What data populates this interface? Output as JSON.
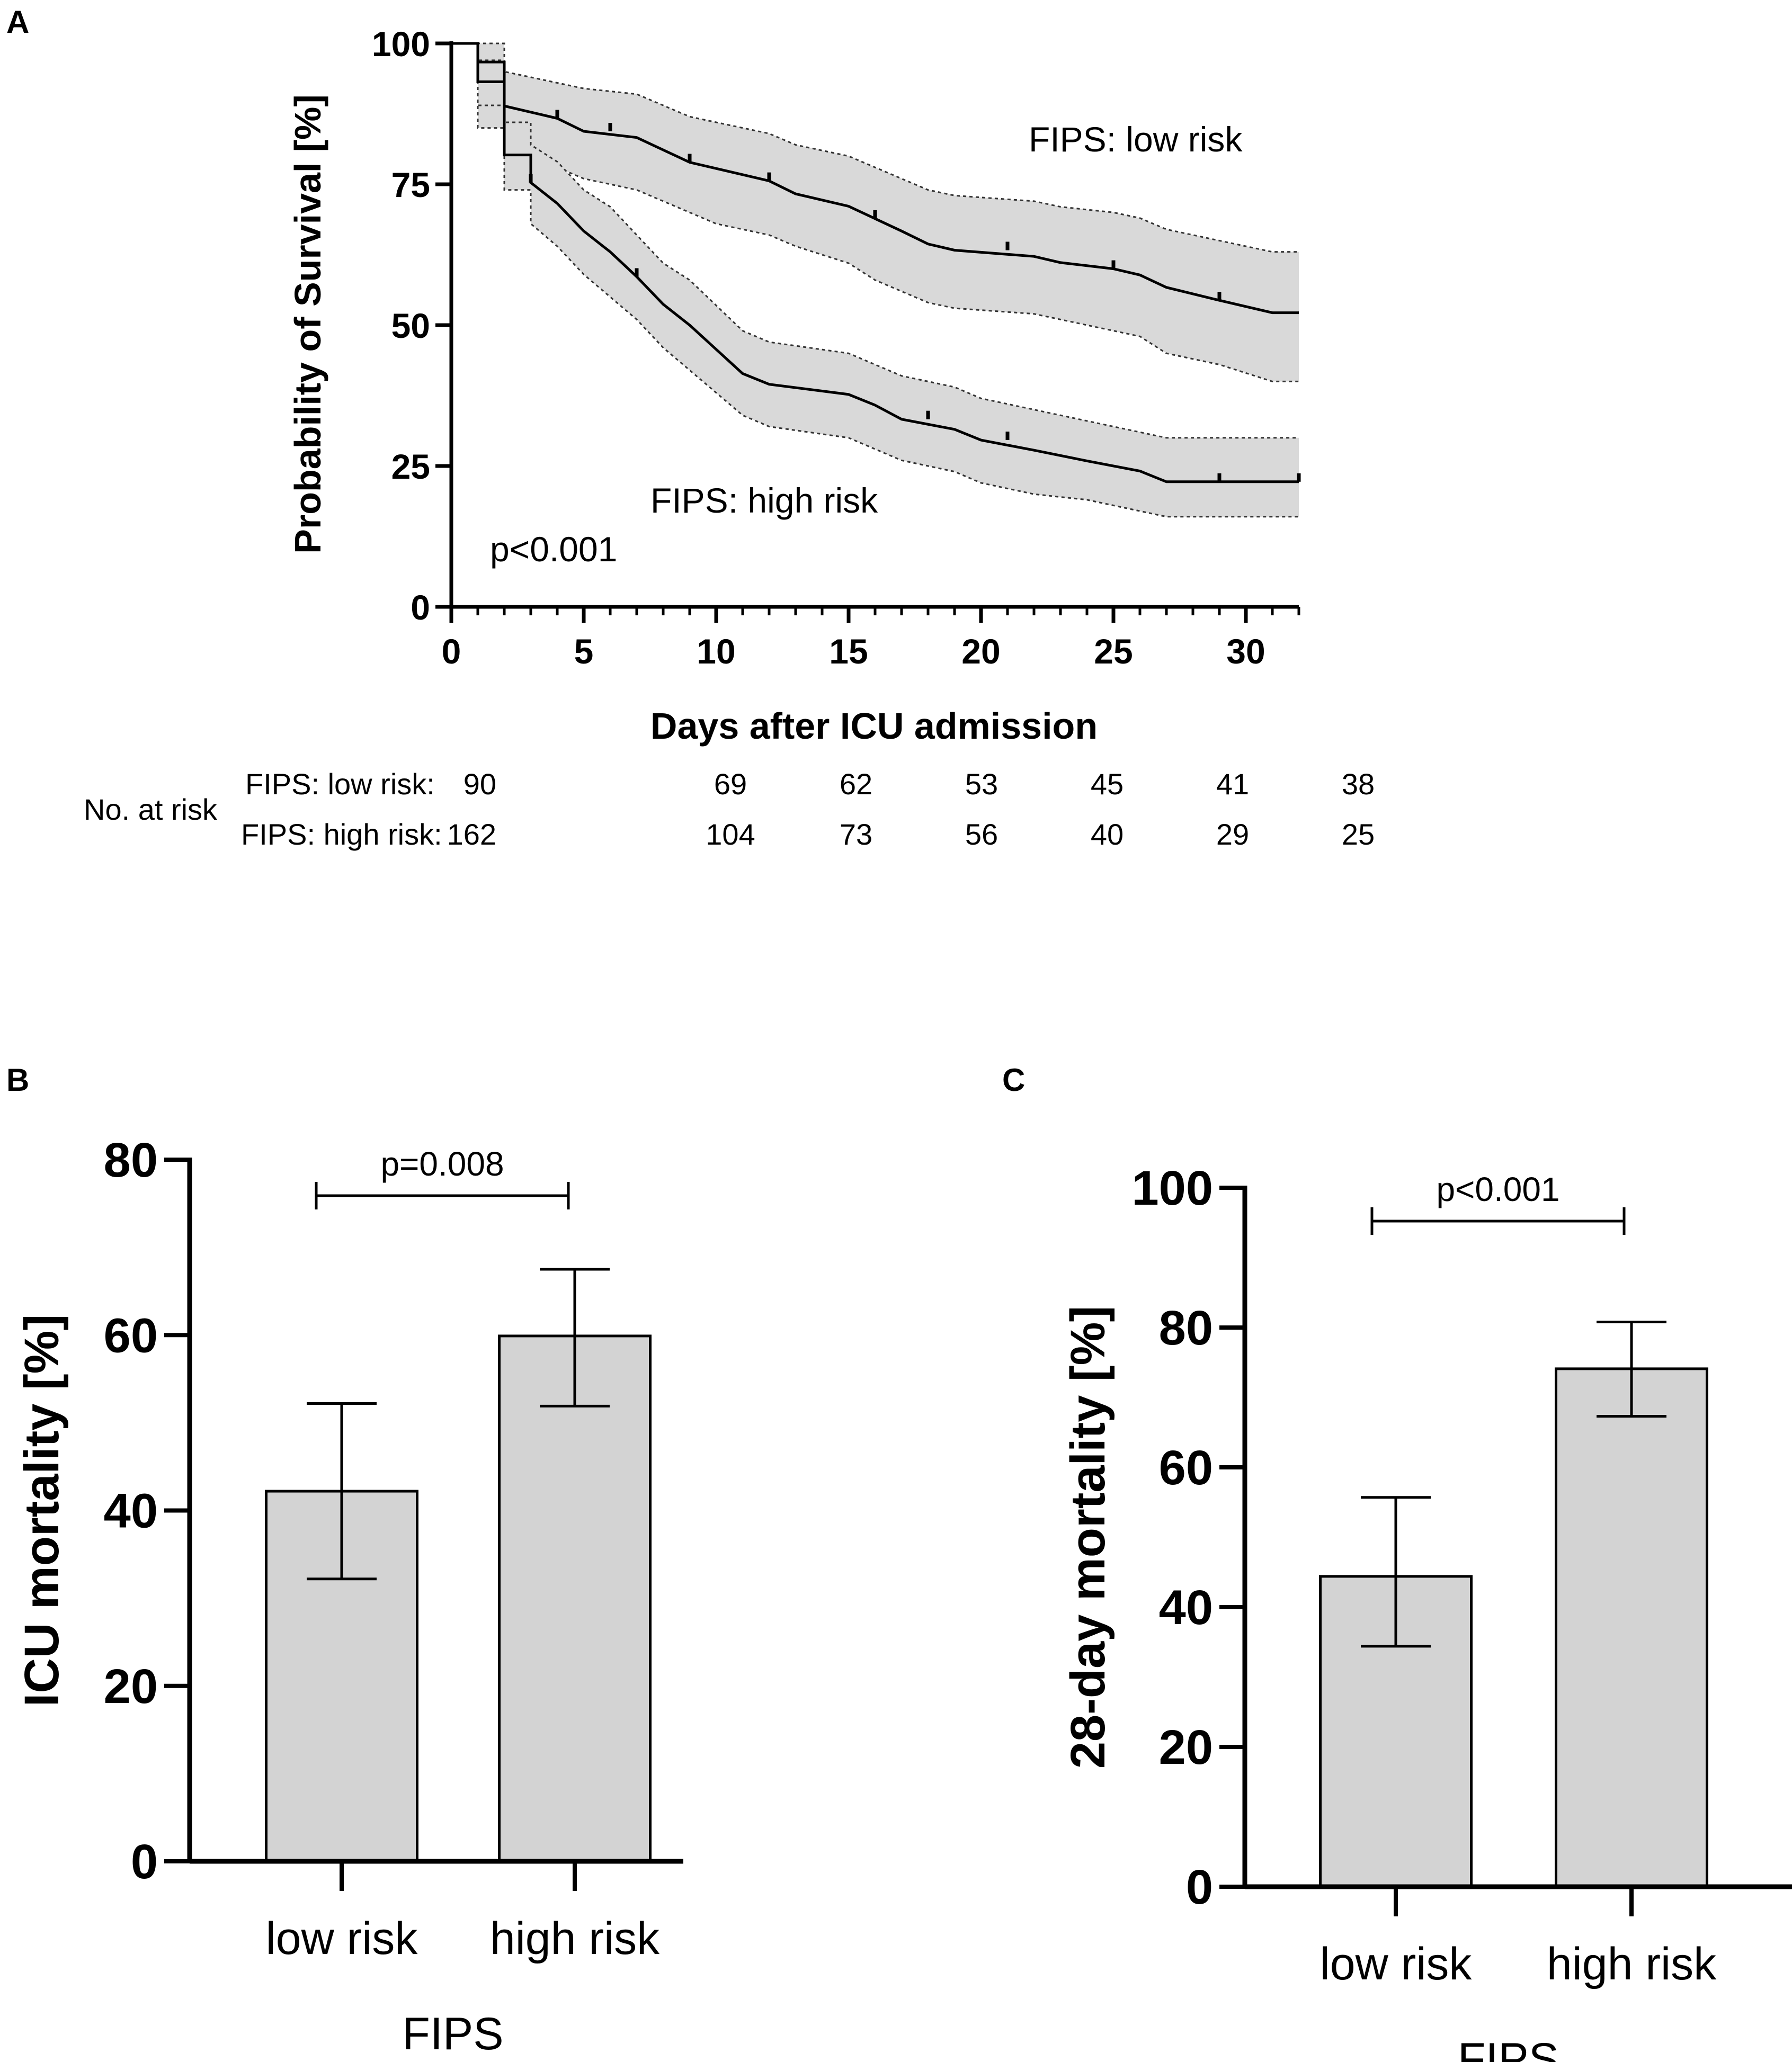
{
  "chart_data": [
    {
      "panel": "A",
      "type": "line",
      "subtype": "kaplan-meier",
      "xlabel": "Days after ICU admission",
      "ylabel": "Probability of Survival [%]",
      "xlim": [
        0,
        32
      ],
      "ylim": [
        0,
        100
      ],
      "xticks": [
        0,
        5,
        10,
        15,
        20,
        25,
        30
      ],
      "yticks": [
        0,
        25,
        50,
        75,
        100
      ],
      "annotation": "p<0.001",
      "series": [
        {
          "name": "FIPS: low risk",
          "steps": [
            [
              0,
              100
            ],
            [
              1,
              100
            ],
            [
              1,
              96.7
            ],
            [
              2,
              96.7
            ],
            [
              2,
              88.9
            ],
            [
              4,
              86.7
            ],
            [
              5,
              84.4
            ],
            [
              7,
              83.3
            ],
            [
              8,
              81.1
            ],
            [
              9,
              78.9
            ],
            [
              10,
              77.8
            ],
            [
              12,
              75.6
            ],
            [
              13,
              73.3
            ],
            [
              15,
              71.1
            ],
            [
              16,
              68.9
            ],
            [
              17,
              66.7
            ],
            [
              18,
              64.4
            ],
            [
              19,
              63.3
            ],
            [
              22,
              62.2
            ],
            [
              23,
              61.1
            ],
            [
              25,
              60.0
            ],
            [
              26,
              58.9
            ],
            [
              27,
              56.7
            ],
            [
              29,
              54.4
            ],
            [
              31,
              52.2
            ],
            [
              32,
              52.2
            ]
          ],
          "ci_lower": [
            [
              0,
              100
            ],
            [
              1,
              100
            ],
            [
              1,
              85
            ],
            [
              2,
              85
            ],
            [
              2,
              81
            ],
            [
              4,
              78
            ],
            [
              5,
              76
            ],
            [
              7,
              74
            ],
            [
              8,
              72
            ],
            [
              9,
              70
            ],
            [
              10,
              68
            ],
            [
              12,
              66
            ],
            [
              13,
              64
            ],
            [
              15,
              61
            ],
            [
              16,
              58
            ],
            [
              17,
              56
            ],
            [
              18,
              54
            ],
            [
              19,
              53
            ],
            [
              22,
              52
            ],
            [
              23,
              51
            ],
            [
              25,
              49
            ],
            [
              26,
              48
            ],
            [
              27,
              45
            ],
            [
              29,
              43
            ],
            [
              31,
              40
            ],
            [
              32,
              40
            ]
          ],
          "ci_upper": [
            [
              0,
              100
            ],
            [
              1,
              100
            ],
            [
              1,
              100
            ],
            [
              2,
              100
            ],
            [
              2,
              95
            ],
            [
              4,
              93
            ],
            [
              5,
              92
            ],
            [
              7,
              91
            ],
            [
              8,
              89
            ],
            [
              9,
              87
            ],
            [
              10,
              86
            ],
            [
              12,
              84
            ],
            [
              13,
              82
            ],
            [
              15,
              80
            ],
            [
              16,
              78
            ],
            [
              17,
              76
            ],
            [
              18,
              74
            ],
            [
              19,
              73
            ],
            [
              22,
              72
            ],
            [
              23,
              71
            ],
            [
              25,
              70
            ],
            [
              26,
              69
            ],
            [
              27,
              67
            ],
            [
              29,
              65
            ],
            [
              31,
              63
            ],
            [
              32,
              63
            ]
          ],
          "censored": [
            4,
            6,
            9,
            12,
            16,
            21,
            25,
            29
          ]
        },
        {
          "name": "FIPS: high risk",
          "steps": [
            [
              0,
              100
            ],
            [
              1,
              100
            ],
            [
              1,
              93.2
            ],
            [
              2,
              93.2
            ],
            [
              2,
              80.2
            ],
            [
              3,
              80.2
            ],
            [
              3,
              75.3
            ],
            [
              4,
              71.6
            ],
            [
              5,
              66.7
            ],
            [
              6,
              63.0
            ],
            [
              7,
              58.6
            ],
            [
              8,
              53.7
            ],
            [
              9,
              50.0
            ],
            [
              11,
              41.4
            ],
            [
              12,
              39.5
            ],
            [
              15,
              37.7
            ],
            [
              16,
              35.8
            ],
            [
              17,
              33.3
            ],
            [
              19,
              31.5
            ],
            [
              20,
              29.6
            ],
            [
              22,
              27.8
            ],
            [
              24,
              25.9
            ],
            [
              26,
              24.1
            ],
            [
              27,
              22.2
            ],
            [
              32,
              22.2
            ]
          ],
          "ci_lower": [
            [
              0,
              100
            ],
            [
              1,
              100
            ],
            [
              1,
              89
            ],
            [
              2,
              89
            ],
            [
              2,
              74
            ],
            [
              3,
              74
            ],
            [
              3,
              68
            ],
            [
              4,
              64
            ],
            [
              5,
              59
            ],
            [
              6,
              55
            ],
            [
              7,
              51
            ],
            [
              8,
              46
            ],
            [
              9,
              42
            ],
            [
              11,
              34
            ],
            [
              12,
              32
            ],
            [
              15,
              30
            ],
            [
              16,
              28
            ],
            [
              17,
              26
            ],
            [
              19,
              24
            ],
            [
              20,
              22
            ],
            [
              22,
              20
            ],
            [
              24,
              19
            ],
            [
              26,
              17
            ],
            [
              27,
              16
            ],
            [
              32,
              16
            ]
          ],
          "ci_upper": [
            [
              0,
              100
            ],
            [
              1,
              100
            ],
            [
              1,
              97
            ],
            [
              2,
              97
            ],
            [
              2,
              86
            ],
            [
              3,
              86
            ],
            [
              3,
              82
            ],
            [
              4,
              79
            ],
            [
              5,
              74
            ],
            [
              6,
              71
            ],
            [
              7,
              66
            ],
            [
              8,
              61
            ],
            [
              9,
              58
            ],
            [
              11,
              49
            ],
            [
              12,
              47
            ],
            [
              15,
              45
            ],
            [
              16,
              43
            ],
            [
              17,
              41
            ],
            [
              19,
              39
            ],
            [
              20,
              37
            ],
            [
              22,
              35
            ],
            [
              24,
              33
            ],
            [
              26,
              31
            ],
            [
              27,
              30
            ],
            [
              32,
              30
            ]
          ],
          "censored": [
            3,
            7,
            18,
            21,
            29,
            32
          ]
        }
      ],
      "risk_table": {
        "title": "No. at risk",
        "time_points": [
          0,
          5,
          10,
          15,
          20,
          25,
          30
        ],
        "rows": [
          {
            "label": "FIPS: low risk:",
            "values": [
              "90",
              "69",
              "62",
              "53",
              "45",
              "41",
              "38"
            ]
          },
          {
            "label": "FIPS: high risk:",
            "values": [
              "162",
              "104",
              "73",
              "56",
              "40",
              "29",
              "25"
            ]
          }
        ]
      }
    },
    {
      "panel": "B",
      "type": "bar",
      "categories": [
        "low risk",
        "high risk"
      ],
      "values": [
        42.2,
        59.9
      ],
      "error_low": [
        32.2,
        51.9
      ],
      "error_high": [
        52.2,
        67.5
      ],
      "xlabel": "FIPS",
      "ylabel": "ICU mortality [%]",
      "ylim": [
        0,
        80
      ],
      "yticks": [
        0,
        20,
        40,
        60,
        80
      ],
      "significance": "p=0.008"
    },
    {
      "panel": "C",
      "type": "bar",
      "categories": [
        "low risk",
        "high risk"
      ],
      "values": [
        44.4,
        74.1
      ],
      "error_low": [
        34.4,
        67.3
      ],
      "error_high": [
        55.7,
        80.8
      ],
      "xlabel": "FIPS",
      "ylabel": "28-day mortality [%]",
      "ylim": [
        0,
        100
      ],
      "yticks": [
        0,
        20,
        40,
        60,
        80,
        100
      ],
      "significance": "p<0.001"
    }
  ],
  "colors": {
    "bar_fill": "#d3d3d3",
    "ci_band": "#d9d9d9",
    "line": "#000000"
  }
}
